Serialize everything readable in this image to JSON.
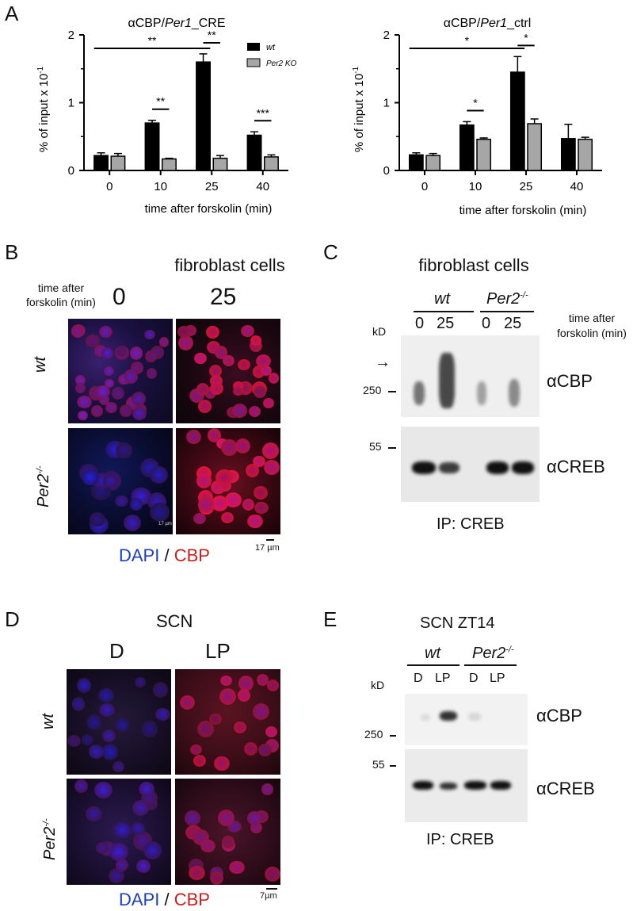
{
  "panels": {
    "a": "A",
    "b": "B",
    "c": "C",
    "d": "D",
    "e": "E"
  },
  "chart_data": [
    {
      "type": "bar",
      "title_prefix": "αCBP/",
      "title_italic": "Per1",
      "title_suffix": "_CRE",
      "xlabel": "time after forskolin (min)",
      "ylabel": "% of input x 10",
      "ylabel_sup": "-1",
      "categories": [
        "0",
        "10",
        "25",
        "40"
      ],
      "ylim": [
        0,
        2
      ],
      "yticks": [
        "0",
        "1",
        "2"
      ],
      "series": [
        {
          "name": "wt",
          "color": "#000000",
          "values": [
            0.22,
            0.7,
            1.6,
            0.52
          ],
          "errors": [
            0.04,
            0.04,
            0.12,
            0.05
          ]
        },
        {
          "name": "Per2 KO",
          "color": "#a6a6a6",
          "values": [
            0.21,
            0.17,
            0.18,
            0.2
          ],
          "errors": [
            0.04,
            0.01,
            0.04,
            0.03
          ]
        }
      ],
      "legend": "top-right",
      "significance": [
        {
          "label": "**",
          "from": "0",
          "to": "25"
        },
        {
          "label": "**",
          "at": "10"
        },
        {
          "label": "**",
          "at": "25"
        },
        {
          "label": "***",
          "at": "40"
        }
      ]
    },
    {
      "type": "bar",
      "title_prefix": "αCBP/",
      "title_italic": "Per1",
      "title_suffix": "_ctrl",
      "xlabel": "time after forskolin (min)",
      "ylabel": "% of input x 10",
      "ylabel_sup": "-1",
      "categories": [
        "0",
        "10",
        "25",
        "40"
      ],
      "ylim": [
        0,
        2
      ],
      "yticks": [
        "0",
        "1",
        "2"
      ],
      "series": [
        {
          "name": "wt",
          "color": "#000000",
          "values": [
            0.23,
            0.67,
            1.45,
            0.47
          ],
          "errors": [
            0.03,
            0.05,
            0.23,
            0.21
          ]
        },
        {
          "name": "Per2 KO",
          "color": "#a6a6a6",
          "values": [
            0.22,
            0.46,
            0.69,
            0.46
          ],
          "errors": [
            0.03,
            0.02,
            0.07,
            0.03
          ]
        }
      ],
      "significance": [
        {
          "label": "*",
          "from": "0",
          "to": "25"
        },
        {
          "label": "*",
          "at": "10"
        },
        {
          "label": "*",
          "at": "25"
        }
      ]
    }
  ],
  "b": {
    "title": "fibroblast cells",
    "time_label_1": "time after",
    "time_label_2": "forskolin (min)",
    "col_0": "0",
    "col_25": "25",
    "row_wt": "wt",
    "row_per2": "Per2",
    "row_per2_sup": "-/-",
    "dapi": "DAPI",
    "slash": "/",
    "cbp": "CBP",
    "scale": "17 µm",
    "inner_scale": "17 µm"
  },
  "c": {
    "title": "fibroblast cells",
    "wt": "wt",
    "per2": "Per2",
    "per2_sup": "-/-",
    "lane_labels": [
      "0",
      "25",
      "0",
      "25"
    ],
    "time_label_1": "time after",
    "time_label_2": "forskolin (min)",
    "kd": "kD",
    "arrow": "→",
    "mw_250": "250",
    "mw_55": "55",
    "ab_cbp": "αCBP",
    "ab_creb": "αCREB",
    "ip": "IP: CREB"
  },
  "d": {
    "title": "SCN",
    "col_d": "D",
    "col_lp": "LP",
    "row_wt": "wt",
    "row_per2": "Per2",
    "row_per2_sup": "-/-",
    "dapi": "DAPI",
    "slash": "/",
    "cbp": "CBP",
    "scale": "7µm"
  },
  "e": {
    "title": "SCN ZT14",
    "wt": "wt",
    "per2": "Per2",
    "per2_sup": "-/-",
    "lane_labels": [
      "D",
      "LP",
      "D",
      "LP"
    ],
    "kd": "kD",
    "mw_250": "250",
    "mw_55": "55",
    "ab_cbp": "αCBP",
    "ab_creb": "αCREB",
    "ip": "IP: CREB"
  },
  "colors": {
    "dapi": "#1f3fbf",
    "cbp": "#c81e1e"
  }
}
